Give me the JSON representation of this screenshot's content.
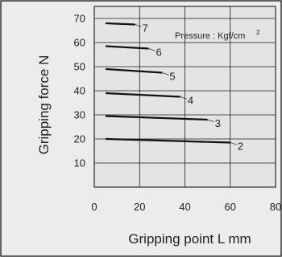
{
  "chart_data": {
    "type": "line",
    "xlabel": "Gripping point  L mm",
    "ylabel": "Gripping force  N",
    "xlim": [
      0,
      80
    ],
    "ylim": [
      0,
      75
    ],
    "x_ticks": [
      0,
      20,
      40,
      60,
      80
    ],
    "y_ticks": [
      10,
      20,
      30,
      40,
      50,
      60,
      70
    ],
    "grid": true,
    "annotation": {
      "text": "Pressure : Kgf/cm",
      "superscript": "2"
    },
    "series": [
      {
        "name": "2",
        "x": [
          5,
          60
        ],
        "y": [
          20,
          18.5
        ]
      },
      {
        "name": "3",
        "x": [
          5,
          50
        ],
        "y": [
          29.5,
          28
        ]
      },
      {
        "name": "4",
        "x": [
          5,
          38
        ],
        "y": [
          39,
          37.5
        ]
      },
      {
        "name": "5",
        "x": [
          5,
          30
        ],
        "y": [
          49,
          47.5
        ]
      },
      {
        "name": "6",
        "x": [
          5,
          24
        ],
        "y": [
          58.5,
          57.5
        ]
      },
      {
        "name": "7",
        "x": [
          5,
          18
        ],
        "y": [
          68,
          67.5
        ]
      }
    ]
  }
}
